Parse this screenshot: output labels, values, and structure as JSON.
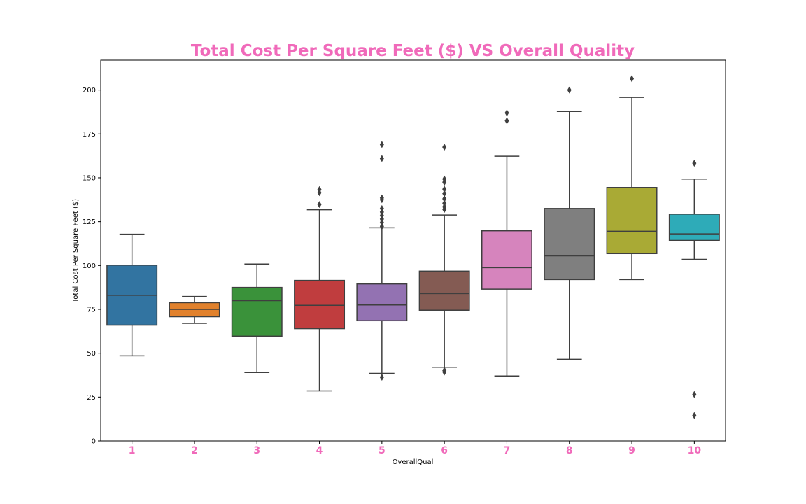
{
  "chart_data": {
    "type": "box",
    "title": "Total Cost Per Square Feet ($) VS Overall Quality",
    "xlabel": "OverallQual",
    "ylabel": "Total Cost Per Square Feet ($)",
    "ylim": [
      0,
      217
    ],
    "yticks": [
      0,
      25,
      50,
      75,
      100,
      125,
      150,
      175,
      200
    ],
    "categories": [
      "1",
      "2",
      "3",
      "4",
      "5",
      "6",
      "7",
      "8",
      "9",
      "10"
    ],
    "grid": false,
    "legend": "none",
    "colors": {
      "title": "#f06aba",
      "xtick": "#f06aba",
      "box_line": "#3f3f3f"
    },
    "boxes": [
      {
        "category": "1",
        "color": "#3274a1",
        "whisker_low": 48.5,
        "q1": 66,
        "median": 83,
        "q3": 100.2,
        "whisker_high": 117.8,
        "outliers": []
      },
      {
        "category": "2",
        "color": "#e1812c",
        "whisker_low": 67,
        "q1": 70.8,
        "median": 75,
        "q3": 78.8,
        "whisker_high": 82.3,
        "outliers": []
      },
      {
        "category": "3",
        "color": "#3a923a",
        "whisker_low": 39,
        "q1": 59.7,
        "median": 80,
        "q3": 87.5,
        "whisker_high": 100.8,
        "outliers": []
      },
      {
        "category": "4",
        "color": "#c03d3e",
        "whisker_low": 28.5,
        "q1": 64,
        "median": 77.3,
        "q3": 91.5,
        "whisker_high": 131.8,
        "outliers": [
          134.8,
          141.5,
          143.3
        ]
      },
      {
        "category": "5",
        "color": "#9372b2",
        "whisker_low": 38.5,
        "q1": 68.5,
        "median": 77.5,
        "q3": 89.5,
        "whisker_high": 121.5,
        "outliers": [
          36.3,
          122.3,
          124.5,
          126.5,
          128.5,
          130.5,
          132.5,
          137.5,
          138.5,
          161,
          169
        ]
      },
      {
        "category": "6",
        "color": "#845b53",
        "whisker_low": 42,
        "q1": 74.5,
        "median": 84,
        "q3": 96.8,
        "whisker_high": 128.8,
        "outliers": [
          39.3,
          40.2,
          132,
          133.5,
          135.5,
          138,
          141,
          143.5,
          147.5,
          149.3,
          167.5
        ]
      },
      {
        "category": "7",
        "color": "#d684bd",
        "whisker_low": 37,
        "q1": 86.5,
        "median": 98.8,
        "q3": 119.8,
        "whisker_high": 162.3,
        "outliers": [
          182.5,
          187
        ]
      },
      {
        "category": "8",
        "color": "#7f7f7f",
        "whisker_low": 46.5,
        "q1": 92,
        "median": 105.5,
        "q3": 132.5,
        "whisker_high": 187.8,
        "outliers": [
          200
        ]
      },
      {
        "category": "9",
        "color": "#a9aa35",
        "whisker_low": 92,
        "q1": 106.8,
        "median": 119.5,
        "q3": 144.5,
        "whisker_high": 195.8,
        "outliers": [
          206.5
        ]
      },
      {
        "category": "10",
        "color": "#2eabb8",
        "whisker_low": 103.5,
        "q1": 114.3,
        "median": 118,
        "q3": 129.3,
        "whisker_high": 149.3,
        "outliers": [
          14.5,
          26.5,
          158.3
        ]
      }
    ]
  }
}
